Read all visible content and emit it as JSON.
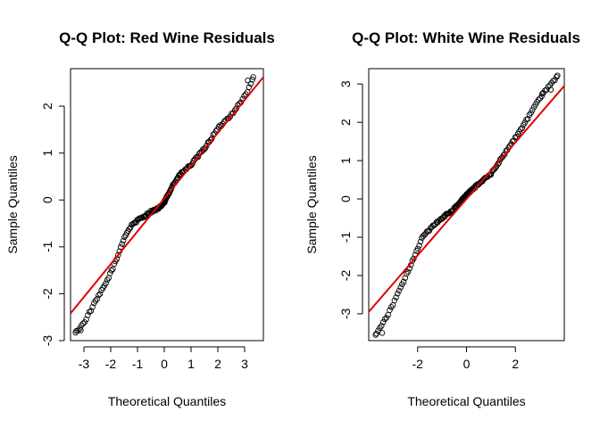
{
  "chart_data": [
    {
      "type": "scatter",
      "title": "Q-Q Plot: Red Wine Residuals",
      "xlabel": "Theoretical Quantiles",
      "ylabel": "Sample Quantiles",
      "xlim": [
        -3.5,
        3.7
      ],
      "ylim": [
        -3.0,
        2.8
      ],
      "xticks": [
        -3,
        -2,
        -1,
        0,
        1,
        2,
        3
      ],
      "yticks": [
        -3,
        -2,
        -1,
        0,
        1,
        2
      ],
      "grid": false,
      "reference_line": {
        "color": "#e00000",
        "points": [
          [
            -3.5,
            -2.42
          ],
          [
            3.7,
            2.62
          ]
        ]
      },
      "points_color": "#000000",
      "curve_knots": [
        [
          -3.31,
          -2.83
        ],
        [
          -3.0,
          -2.62
        ],
        [
          -2.6,
          -2.2
        ],
        [
          -2.2,
          -1.8
        ],
        [
          -1.8,
          -1.3
        ],
        [
          -1.5,
          -0.8
        ],
        [
          -1.2,
          -0.52
        ],
        [
          -0.9,
          -0.4
        ],
        [
          -0.5,
          -0.25
        ],
        [
          -0.2,
          -0.18
        ],
        [
          0.0,
          -0.05
        ],
        [
          0.3,
          0.3
        ],
        [
          0.6,
          0.55
        ],
        [
          1.0,
          0.75
        ],
        [
          1.5,
          1.1
        ],
        [
          2.0,
          1.52
        ],
        [
          2.5,
          1.82
        ],
        [
          2.8,
          2.05
        ],
        [
          3.1,
          2.3
        ],
        [
          3.32,
          2.6
        ]
      ],
      "extremes": [
        [
          -3.31,
          -2.83
        ],
        [
          -3.12,
          -2.78
        ],
        [
          3.12,
          2.55
        ],
        [
          3.32,
          2.62
        ]
      ]
    },
    {
      "type": "scatter",
      "title": "Q-Q Plot: White Wine Residuals",
      "xlabel": "Theoretical Quantiles",
      "ylabel": "Sample Quantiles",
      "xlim": [
        -4.0,
        4.0
      ],
      "ylim": [
        -3.7,
        3.4
      ],
      "xticks": [
        -2,
        0,
        2
      ],
      "yticks": [
        -3,
        -2,
        -1,
        0,
        1,
        2,
        3
      ],
      "grid": false,
      "reference_line": {
        "color": "#e00000",
        "points": [
          [
            -4.0,
            -2.95
          ],
          [
            4.0,
            2.95
          ]
        ]
      },
      "points_color": "#000000",
      "curve_knots": [
        [
          -3.72,
          -3.55
        ],
        [
          -3.2,
          -3.0
        ],
        [
          -2.6,
          -2.2
        ],
        [
          -2.2,
          -1.6
        ],
        [
          -1.8,
          -1.0
        ],
        [
          -1.4,
          -0.72
        ],
        [
          -1.0,
          -0.5
        ],
        [
          -0.5,
          -0.25
        ],
        [
          0.0,
          0.1
        ],
        [
          0.5,
          0.4
        ],
        [
          1.0,
          0.65
        ],
        [
          1.5,
          1.12
        ],
        [
          2.0,
          1.6
        ],
        [
          2.5,
          2.1
        ],
        [
          2.9,
          2.55
        ],
        [
          3.2,
          2.8
        ],
        [
          3.72,
          3.2
        ]
      ],
      "extremes": [
        [
          -3.72,
          -3.55
        ],
        [
          -3.45,
          -3.5
        ],
        [
          3.1,
          2.75
        ],
        [
          3.45,
          2.85
        ],
        [
          3.72,
          3.22
        ]
      ]
    }
  ]
}
